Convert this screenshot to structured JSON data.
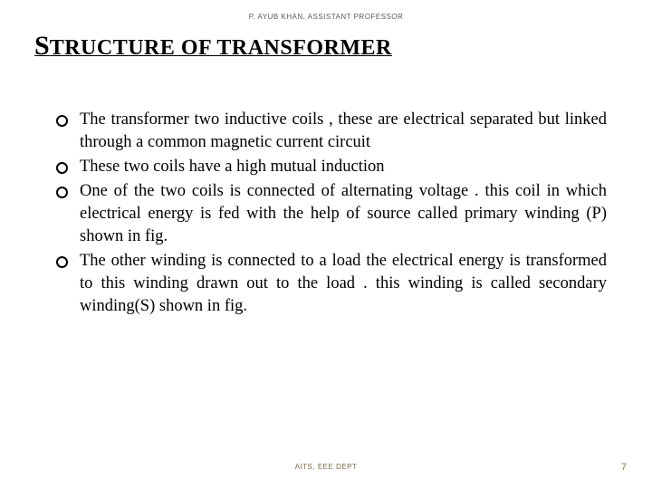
{
  "header": {
    "author_line": "P. AYUB KHAN, ASSISTANT PROFESSOR"
  },
  "title": {
    "first_letter": "S",
    "rest": "TRUCTURE OF TRANSFORMER"
  },
  "bullets": [
    "The transformer two inductive coils , these are electrical separated but linked through a common magnetic current circuit",
    "These two coils have a high mutual induction",
    "One of the two coils is connected of alternating voltage . this coil in which electrical energy is fed with the help of source called primary winding (P) shown in fig.",
    "The other winding is connected to a load the electrical energy is transformed to this winding drawn out to the load . this winding is called secondary winding(S) shown in fig."
  ],
  "footer": {
    "center_text": "AITS, EEE DEPT",
    "page_number": "7"
  },
  "styling": {
    "background_color": "#ffffff",
    "text_color": "#000000",
    "header_color": "#5a5a5a",
    "footer_color": "#8a7a55",
    "title_fontsize_big": 30,
    "title_fontsize_rest": 24,
    "body_fontsize": 18.5,
    "header_fontsize": 8,
    "footer_fontsize": 8,
    "bullet_border_width": 2,
    "bullet_diameter": 9,
    "slide_width": 720,
    "slide_height": 540
  }
}
